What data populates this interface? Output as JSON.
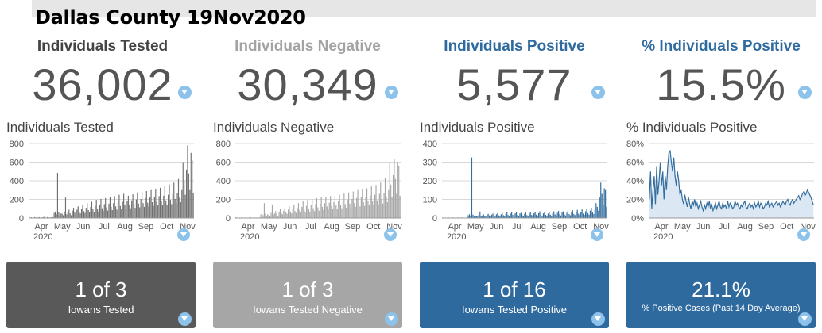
{
  "title": "Dallas County 19Nov2020",
  "colors": {
    "tested": "#6f6f6f",
    "negative": "#a7a7a7",
    "positive": "#346e9e",
    "accent_text": "#2f6a9f",
    "filter": "#8dc3ea"
  },
  "metrics": [
    {
      "label": "Individuals Tested",
      "value": "36,002",
      "color": "#444444"
    },
    {
      "label": "Individuals Negative",
      "value": "30,349",
      "color": "#a3a3a3"
    },
    {
      "label": "Individuals Positive",
      "value": "5,577",
      "color": "#2f6a9f"
    },
    {
      "label": "% Individuals Positive",
      "value": "15.5%",
      "color": "#2f6a9f"
    }
  ],
  "cards": [
    {
      "main": "1 of 3",
      "sub": "Iowans Tested",
      "bg": "#595959"
    },
    {
      "main": "1 of 3",
      "sub": "Iowans Tested Negative",
      "bg": "#a6a6a6"
    },
    {
      "main": "1 of 16",
      "sub": "Iowans Tested Positive",
      "bg": "#2f6a9f"
    },
    {
      "main": "21.1%",
      "sub": "% Positive Cases (Past 14 Day Average)",
      "bg": "#2f6a9f"
    }
  ],
  "chart_data": [
    {
      "type": "bar",
      "title": "Individuals Tested",
      "x_ticks": [
        "Apr",
        "May",
        "Jun",
        "Jul",
        "Aug",
        "Sep",
        "Oct",
        "Nov"
      ],
      "x_year": "2020",
      "y_ticks": [
        "0",
        "200",
        "400",
        "600",
        "800"
      ],
      "ylim": [
        0,
        800
      ],
      "grid": true,
      "color": "#6f6f6f",
      "values": [
        12,
        4,
        8,
        5,
        3,
        10,
        6,
        4,
        7,
        9,
        5,
        3,
        8,
        12,
        6,
        4,
        10,
        7,
        5,
        8,
        6,
        10,
        55,
        70,
        40,
        485,
        60,
        30,
        50,
        45,
        30,
        70,
        220,
        40,
        60,
        90,
        50,
        30,
        80,
        110,
        65,
        45,
        90,
        125,
        70,
        50,
        100,
        140,
        75,
        55,
        110,
        160,
        85,
        60,
        120,
        175,
        95,
        65,
        130,
        195,
        100,
        70,
        140,
        205,
        105,
        75,
        150,
        215,
        115,
        80,
        155,
        225,
        120,
        85,
        160,
        235,
        125,
        90,
        170,
        250,
        130,
        95,
        175,
        260,
        140,
        100,
        185,
        240,
        145,
        105,
        190,
        255,
        150,
        110,
        200,
        275,
        155,
        115,
        205,
        285,
        160,
        120,
        215,
        290,
        165,
        125,
        220,
        300,
        170,
        130,
        225,
        315,
        175,
        135,
        235,
        325,
        180,
        140,
        240,
        340,
        190,
        145,
        250,
        360,
        195,
        150,
        260,
        380,
        205,
        160,
        270,
        420,
        220,
        170,
        300,
        600,
        400,
        250,
        520,
        780,
        480,
        300,
        700,
        620,
        270
      ]
    },
    {
      "type": "bar",
      "title": "Individuals Negative",
      "x_ticks": [
        "Apr",
        "May",
        "Jun",
        "Jul",
        "Aug",
        "Sep",
        "Oct",
        "Nov"
      ],
      "x_year": "2020",
      "y_ticks": [
        "0",
        "200",
        "400",
        "600",
        "800"
      ],
      "ylim": [
        0,
        800
      ],
      "grid": true,
      "color": "#a7a7a7",
      "values": [
        8,
        3,
        5,
        4,
        2,
        7,
        4,
        3,
        5,
        6,
        4,
        2,
        6,
        9,
        4,
        3,
        7,
        5,
        4,
        6,
        4,
        8,
        40,
        50,
        30,
        160,
        45,
        25,
        40,
        35,
        25,
        55,
        140,
        35,
        50,
        75,
        45,
        25,
        70,
        95,
        55,
        40,
        80,
        110,
        60,
        45,
        90,
        125,
        65,
        50,
        100,
        140,
        75,
        55,
        110,
        160,
        85,
        60,
        120,
        180,
        95,
        65,
        130,
        195,
        100,
        70,
        140,
        205,
        105,
        75,
        150,
        215,
        115,
        80,
        155,
        225,
        120,
        85,
        160,
        230,
        125,
        90,
        165,
        235,
        130,
        95,
        170,
        240,
        135,
        100,
        180,
        250,
        140,
        105,
        190,
        265,
        150,
        110,
        200,
        275,
        155,
        115,
        205,
        285,
        160,
        120,
        215,
        300,
        165,
        125,
        225,
        310,
        170,
        130,
        230,
        320,
        180,
        135,
        240,
        340,
        185,
        140,
        250,
        355,
        190,
        145,
        260,
        380,
        200,
        155,
        270,
        430,
        230,
        170,
        300,
        600,
        360,
        230,
        460,
        630,
        420,
        260,
        600,
        560,
        240
      ]
    },
    {
      "type": "bar",
      "title": "Individuals Positive",
      "x_ticks": [
        "Apr",
        "May",
        "Jun",
        "Jul",
        "Aug",
        "Sep",
        "Oct",
        "Nov"
      ],
      "x_year": "2020",
      "y_ticks": [
        "0",
        "100",
        "200",
        "300",
        "400"
      ],
      "ylim": [
        0,
        400
      ],
      "grid": true,
      "color": "#346e9e",
      "values": [
        3,
        1,
        2,
        1,
        1,
        3,
        2,
        1,
        2,
        3,
        1,
        1,
        2,
        3,
        2,
        1,
        3,
        2,
        1,
        2,
        2,
        3,
        15,
        20,
        12,
        325,
        18,
        8,
        12,
        10,
        8,
        18,
        35,
        10,
        14,
        20,
        12,
        8,
        18,
        22,
        14,
        10,
        18,
        24,
        14,
        10,
        20,
        26,
        14,
        10,
        20,
        28,
        15,
        10,
        22,
        30,
        16,
        11,
        24,
        32,
        17,
        12,
        25,
        30,
        16,
        12,
        24,
        28,
        15,
        11,
        22,
        30,
        16,
        12,
        24,
        32,
        17,
        12,
        25,
        34,
        18,
        13,
        26,
        36,
        18,
        13,
        25,
        33,
        17,
        12,
        24,
        34,
        18,
        13,
        26,
        36,
        19,
        14,
        28,
        38,
        20,
        14,
        30,
        36,
        19,
        14,
        28,
        40,
        21,
        15,
        30,
        42,
        22,
        16,
        32,
        44,
        23,
        16,
        34,
        46,
        24,
        17,
        36,
        48,
        26,
        18,
        40,
        55,
        30,
        22,
        50,
        80,
        60,
        40,
        110,
        190,
        130,
        70,
        160,
        150,
        60
      ]
    },
    {
      "type": "area",
      "title": "% Individuals Positive",
      "x_ticks": [
        "Apr",
        "May",
        "Jun",
        "Jul",
        "Aug",
        "Sep",
        "Oct",
        "Nov"
      ],
      "x_year": "2020",
      "y_ticks": [
        "0%",
        "20%",
        "40%",
        "60%",
        "80%"
      ],
      "ylim": [
        0,
        80
      ],
      "grid": true,
      "color": "#346e9e",
      "fill": "#dbe8f3",
      "values": [
        20,
        50,
        10,
        30,
        45,
        15,
        55,
        25,
        40,
        60,
        35,
        50,
        20,
        45,
        30,
        55,
        70,
        72,
        60,
        50,
        65,
        45,
        35,
        50,
        40,
        25,
        30,
        20,
        15,
        25,
        18,
        12,
        22,
        15,
        10,
        18,
        14,
        20,
        12,
        16,
        10,
        14,
        18,
        12,
        8,
        14,
        10,
        16,
        12,
        18,
        10,
        14,
        8,
        12,
        16,
        10,
        14,
        18,
        12,
        10,
        16,
        12,
        14,
        10,
        18,
        12,
        16,
        14,
        10,
        12,
        18,
        14,
        16,
        12,
        10,
        14,
        12,
        16,
        18,
        12,
        10,
        14,
        16,
        12,
        14,
        10,
        16,
        12,
        14,
        18,
        12,
        16,
        14,
        10,
        12,
        16,
        14,
        18,
        12,
        14,
        16,
        12,
        14,
        16,
        18,
        14,
        16,
        12,
        14,
        18,
        16,
        14,
        18,
        20,
        16,
        14,
        18,
        20,
        16,
        18,
        20,
        22,
        24,
        20,
        22,
        26,
        28,
        24,
        26,
        30,
        28,
        25,
        22,
        18,
        14
      ]
    }
  ]
}
